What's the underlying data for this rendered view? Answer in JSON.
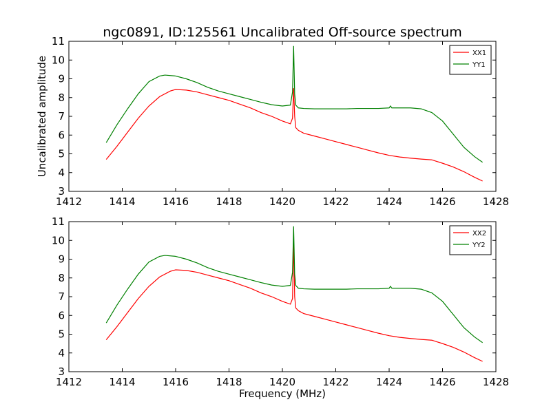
{
  "chart_data": {
    "title": "ngc0891, ID:125561 Uncalibrated Off-source spectrum",
    "xlabel": "Frequency (MHz)",
    "ylabel": "Uncalibrated amplitude",
    "panels": [
      {
        "type": "line",
        "xlim": [
          1412,
          1428
        ],
        "ylim": [
          3,
          11
        ],
        "xticks": [
          1412,
          1414,
          1416,
          1418,
          1420,
          1422,
          1424,
          1426,
          1428
        ],
        "yticks": [
          3,
          4,
          5,
          6,
          7,
          8,
          9,
          10,
          11
        ],
        "legend_position": "top-right",
        "series": [
          {
            "name": "XX1",
            "color": "#ff0000",
            "x": [
              1413.4,
              1413.8,
              1414.2,
              1414.6,
              1415.0,
              1415.4,
              1415.8,
              1416.0,
              1416.4,
              1416.8,
              1417.2,
              1417.6,
              1418.0,
              1418.4,
              1418.8,
              1419.2,
              1419.6,
              1420.0,
              1420.3,
              1420.38,
              1420.42,
              1420.46,
              1420.5,
              1420.6,
              1420.8,
              1421.2,
              1421.6,
              1422.0,
              1422.4,
              1422.8,
              1423.2,
              1423.6,
              1424.0,
              1424.4,
              1424.8,
              1425.2,
              1425.6,
              1426.0,
              1426.4,
              1426.8,
              1427.2,
              1427.5
            ],
            "y": [
              4.7,
              5.4,
              6.15,
              6.9,
              7.55,
              8.05,
              8.35,
              8.43,
              8.4,
              8.3,
              8.15,
              8.0,
              7.85,
              7.65,
              7.45,
              7.2,
              7.0,
              6.75,
              6.6,
              6.9,
              8.5,
              7.0,
              6.4,
              6.25,
              6.1,
              5.95,
              5.8,
              5.65,
              5.5,
              5.35,
              5.2,
              5.05,
              4.92,
              4.83,
              4.77,
              4.72,
              4.68,
              4.5,
              4.3,
              4.05,
              3.75,
              3.55
            ]
          },
          {
            "name": "YY1",
            "color": "#008000",
            "x": [
              1413.4,
              1413.8,
              1414.2,
              1414.6,
              1415.0,
              1415.4,
              1415.6,
              1416.0,
              1416.4,
              1416.8,
              1417.2,
              1417.6,
              1418.0,
              1418.4,
              1418.8,
              1419.2,
              1419.6,
              1420.0,
              1420.3,
              1420.38,
              1420.42,
              1420.46,
              1420.5,
              1420.6,
              1420.8,
              1421.2,
              1421.6,
              1422.0,
              1422.4,
              1422.8,
              1423.2,
              1423.6,
              1424.0,
              1424.05,
              1424.1,
              1424.4,
              1424.8,
              1425.2,
              1425.6,
              1426.0,
              1426.4,
              1426.8,
              1427.2,
              1427.5
            ],
            "y": [
              5.6,
              6.55,
              7.4,
              8.2,
              8.85,
              9.15,
              9.2,
              9.15,
              9.0,
              8.8,
              8.55,
              8.35,
              8.2,
              8.05,
              7.9,
              7.75,
              7.62,
              7.55,
              7.6,
              8.3,
              10.75,
              8.2,
              7.6,
              7.45,
              7.42,
              7.4,
              7.4,
              7.4,
              7.4,
              7.42,
              7.42,
              7.42,
              7.45,
              7.55,
              7.45,
              7.45,
              7.45,
              7.4,
              7.2,
              6.75,
              6.05,
              5.35,
              4.85,
              4.55
            ]
          }
        ]
      },
      {
        "type": "line",
        "xlim": [
          1412,
          1428
        ],
        "ylim": [
          3,
          11
        ],
        "xticks": [
          1412,
          1414,
          1416,
          1418,
          1420,
          1422,
          1424,
          1426,
          1428
        ],
        "yticks": [
          3,
          4,
          5,
          6,
          7,
          8,
          9,
          10,
          11
        ],
        "legend_position": "top-right",
        "series": [
          {
            "name": "XX2",
            "color": "#ff0000",
            "x": [
              1413.4,
              1413.8,
              1414.2,
              1414.6,
              1415.0,
              1415.4,
              1415.8,
              1416.0,
              1416.4,
              1416.8,
              1417.2,
              1417.6,
              1418.0,
              1418.4,
              1418.8,
              1419.2,
              1419.6,
              1420.0,
              1420.3,
              1420.38,
              1420.42,
              1420.46,
              1420.5,
              1420.6,
              1420.8,
              1421.2,
              1421.6,
              1422.0,
              1422.4,
              1422.8,
              1423.2,
              1423.6,
              1424.0,
              1424.4,
              1424.8,
              1425.2,
              1425.6,
              1426.0,
              1426.4,
              1426.8,
              1427.2,
              1427.5
            ],
            "y": [
              4.7,
              5.4,
              6.15,
              6.9,
              7.55,
              8.05,
              8.35,
              8.43,
              8.4,
              8.3,
              8.15,
              8.0,
              7.85,
              7.65,
              7.45,
              7.2,
              7.0,
              6.75,
              6.6,
              6.9,
              10.0,
              7.0,
              6.4,
              6.25,
              6.1,
              5.95,
              5.8,
              5.65,
              5.5,
              5.35,
              5.2,
              5.05,
              4.92,
              4.83,
              4.77,
              4.72,
              4.68,
              4.5,
              4.3,
              4.05,
              3.75,
              3.55
            ]
          },
          {
            "name": "YY2",
            "color": "#008000",
            "x": [
              1413.4,
              1413.8,
              1414.2,
              1414.6,
              1415.0,
              1415.4,
              1415.6,
              1416.0,
              1416.4,
              1416.8,
              1417.2,
              1417.6,
              1418.0,
              1418.4,
              1418.8,
              1419.2,
              1419.6,
              1420.0,
              1420.3,
              1420.38,
              1420.42,
              1420.46,
              1420.5,
              1420.6,
              1420.8,
              1421.2,
              1421.6,
              1422.0,
              1422.4,
              1422.8,
              1423.2,
              1423.6,
              1424.0,
              1424.05,
              1424.1,
              1424.4,
              1424.8,
              1425.2,
              1425.6,
              1426.0,
              1426.4,
              1426.8,
              1427.2,
              1427.5
            ],
            "y": [
              5.6,
              6.55,
              7.4,
              8.2,
              8.85,
              9.15,
              9.2,
              9.15,
              9.0,
              8.8,
              8.55,
              8.35,
              8.2,
              8.05,
              7.9,
              7.75,
              7.62,
              7.55,
              7.6,
              8.3,
              10.75,
              8.2,
              7.6,
              7.45,
              7.42,
              7.4,
              7.4,
              7.4,
              7.4,
              7.42,
              7.42,
              7.42,
              7.45,
              7.55,
              7.45,
              7.45,
              7.45,
              7.4,
              7.2,
              6.75,
              6.05,
              5.35,
              4.85,
              4.55
            ]
          }
        ]
      }
    ]
  }
}
